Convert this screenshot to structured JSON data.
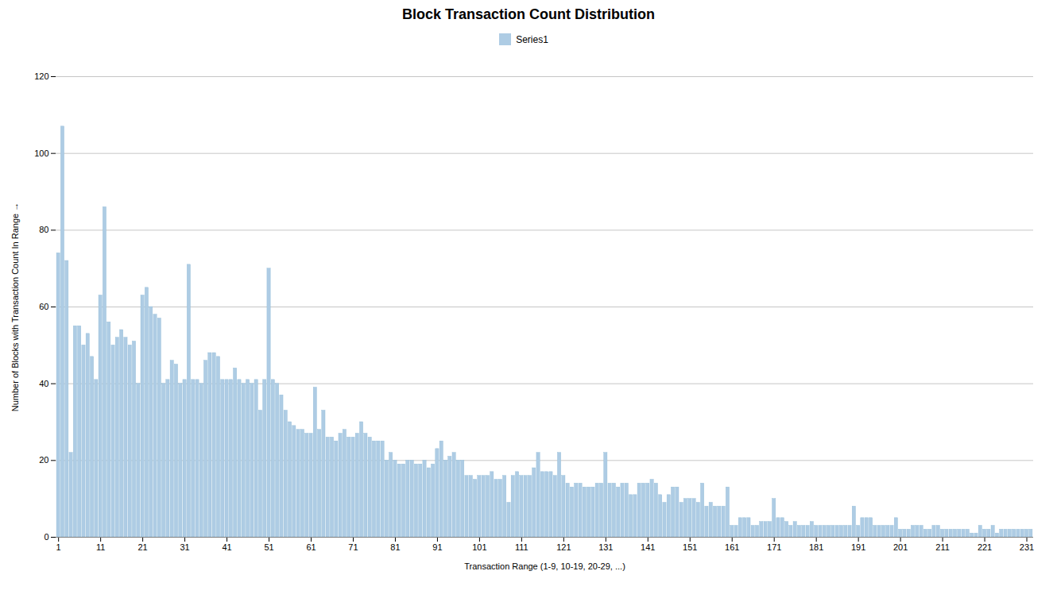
{
  "chart_data": {
    "type": "bar",
    "title": "Block Transaction Count Distribution",
    "xlabel": "Transaction Range (1-9, 10-19, 20-29, ...)",
    "ylabel": "Number of Blocks with Transaction Count In Range",
    "categories": [
      "1",
      null,
      null,
      null,
      null,
      null,
      null,
      null,
      null,
      null,
      "11",
      null,
      null,
      null,
      null,
      null,
      null,
      null,
      null,
      null,
      "21",
      null,
      null,
      null,
      null,
      null,
      null,
      null,
      null,
      null,
      "31",
      null,
      null,
      null,
      null,
      null,
      null,
      null,
      null,
      null,
      "41",
      null,
      null,
      null,
      null,
      null,
      null,
      null,
      null,
      null,
      "51",
      null,
      null,
      null,
      null,
      null,
      null,
      null,
      null,
      null,
      "61",
      null,
      null,
      null,
      null,
      null,
      null,
      null,
      null,
      null,
      "71",
      null,
      null,
      null,
      null,
      null,
      null,
      null,
      null,
      null,
      "81",
      null,
      null,
      null,
      null,
      null,
      null,
      null,
      null,
      null,
      "91",
      null,
      null,
      null,
      null,
      null,
      null,
      null,
      null,
      null,
      "101",
      null,
      null,
      null,
      null,
      null,
      null,
      null,
      null,
      null,
      "111",
      null,
      null,
      null,
      null,
      null,
      null,
      null,
      null,
      null,
      "121",
      null,
      null,
      null,
      null,
      null,
      null,
      null,
      null,
      null,
      "131",
      null,
      null,
      null,
      null,
      null,
      null,
      null,
      null,
      null,
      "141",
      null,
      null,
      null,
      null,
      null,
      null,
      null,
      null,
      null,
      "151",
      null,
      null,
      null,
      null,
      null,
      null,
      null,
      null,
      null,
      "161",
      null,
      null,
      null,
      null,
      null,
      null,
      null,
      null,
      null,
      "171",
      null,
      null,
      null,
      null,
      null,
      null,
      null,
      null,
      null,
      "181",
      null,
      null,
      null,
      null,
      null,
      null,
      null,
      null,
      null,
      "191",
      null,
      null,
      null,
      null,
      null,
      null,
      null,
      null,
      null,
      "201",
      null,
      null,
      null,
      null,
      null,
      null,
      null,
      null,
      null,
      "211",
      null,
      null,
      null,
      null,
      null,
      null,
      null,
      null,
      null,
      "221",
      null,
      null,
      null,
      null,
      null,
      null,
      null,
      null,
      null,
      "231",
      null
    ],
    "series": [
      {
        "name": "Series1",
        "color": "#aecce4",
        "values": [
          74,
          107,
          72,
          22,
          55,
          55,
          50,
          53,
          47,
          41,
          63,
          86,
          56,
          50,
          52,
          54,
          52,
          50,
          51,
          40,
          63,
          65,
          60,
          58,
          57,
          40,
          41,
          46,
          45,
          40,
          41,
          71,
          41,
          41,
          40,
          46,
          48,
          48,
          47,
          41,
          41,
          41,
          44,
          41,
          40,
          41,
          40,
          41,
          33,
          41,
          70,
          41,
          40,
          37,
          33,
          30,
          29,
          28,
          28,
          27,
          27,
          39,
          28,
          33,
          26,
          26,
          25,
          27,
          28,
          26,
          26,
          27,
          30,
          27,
          26,
          25,
          25,
          25,
          20,
          22,
          20,
          19,
          19,
          20,
          20,
          19,
          19,
          20,
          18,
          19,
          23,
          25,
          20,
          21,
          22,
          20,
          20,
          16,
          16,
          15,
          16,
          16,
          16,
          17,
          15,
          15,
          16,
          9,
          16,
          17,
          16,
          16,
          16,
          18,
          22,
          17,
          17,
          17,
          16,
          22,
          16,
          14,
          13,
          14,
          14,
          13,
          13,
          13,
          14,
          14,
          22,
          14,
          14,
          13,
          14,
          14,
          11,
          11,
          14,
          14,
          14,
          15,
          14,
          11,
          9,
          11,
          13,
          13,
          9,
          10,
          10,
          10,
          9,
          14,
          8,
          9,
          8,
          8,
          8,
          13,
          3,
          3,
          5,
          5,
          5,
          3,
          3,
          4,
          4,
          4,
          10,
          5,
          5,
          4,
          3,
          4,
          3,
          3,
          3,
          4,
          3,
          3,
          3,
          3,
          3,
          3,
          3,
          3,
          3,
          8,
          3,
          5,
          5,
          5,
          3,
          3,
          3,
          3,
          3,
          5,
          2,
          2,
          2,
          3,
          3,
          3,
          2,
          2,
          3,
          3,
          2,
          2,
          2,
          2,
          2,
          2,
          2,
          1,
          1,
          3,
          2,
          2,
          3,
          1,
          2,
          2,
          2,
          2,
          2,
          2,
          2,
          2
        ]
      }
    ],
    "ylim": [
      0,
      120
    ],
    "yticks": [
      0,
      20,
      40,
      60,
      80,
      100,
      120
    ],
    "grid": true,
    "legend": "right"
  }
}
